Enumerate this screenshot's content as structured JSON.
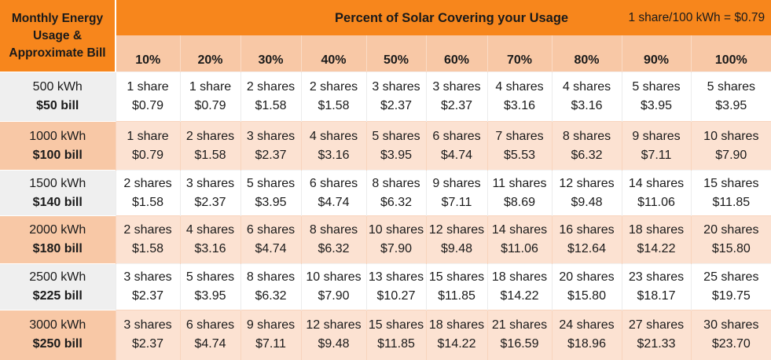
{
  "header": {
    "corner_lines": [
      "Monthly Energy",
      "Usage &",
      "Approximate Bill"
    ],
    "banner_title": "Percent of Solar Covering your Usage",
    "rate_note": "1 share/100 kWh = $0.79",
    "percents": [
      "10%",
      "20%",
      "30%",
      "40%",
      "50%",
      "60%",
      "70%",
      "80%",
      "90%",
      "100%"
    ]
  },
  "rows": [
    {
      "usage": "500 kWh",
      "bill": "$50 bill",
      "cells": [
        {
          "shares": "1 share",
          "cost": "$0.79"
        },
        {
          "shares": "1 share",
          "cost": "$0.79"
        },
        {
          "shares": "2 shares",
          "cost": "$1.58"
        },
        {
          "shares": "2 shares",
          "cost": "$1.58"
        },
        {
          "shares": "3 shares",
          "cost": "$2.37"
        },
        {
          "shares": "3 shares",
          "cost": "$2.37"
        },
        {
          "shares": "4 shares",
          "cost": "$3.16"
        },
        {
          "shares": "4 shares",
          "cost": "$3.16"
        },
        {
          "shares": "5 shares",
          "cost": "$3.95"
        },
        {
          "shares": "5 shares",
          "cost": "$3.95"
        }
      ]
    },
    {
      "usage": "1000 kWh",
      "bill": "$100 bill",
      "cells": [
        {
          "shares": "1 share",
          "cost": "$0.79"
        },
        {
          "shares": "2 shares",
          "cost": "$1.58"
        },
        {
          "shares": "3 shares",
          "cost": "$2.37"
        },
        {
          "shares": "4 shares",
          "cost": "$3.16"
        },
        {
          "shares": "5 shares",
          "cost": "$3.95"
        },
        {
          "shares": "6 shares",
          "cost": "$4.74"
        },
        {
          "shares": "7 shares",
          "cost": "$5.53"
        },
        {
          "shares": "8 shares",
          "cost": "$6.32"
        },
        {
          "shares": "9 shares",
          "cost": "$7.11"
        },
        {
          "shares": "10 shares",
          "cost": "$7.90"
        }
      ]
    },
    {
      "usage": "1500 kWh",
      "bill": "$140 bill",
      "cells": [
        {
          "shares": "2 shares",
          "cost": "$1.58"
        },
        {
          "shares": "3 shares",
          "cost": "$2.37"
        },
        {
          "shares": "5 shares",
          "cost": "$3.95"
        },
        {
          "shares": "6 shares",
          "cost": "$4.74"
        },
        {
          "shares": "8 shares",
          "cost": "$6.32"
        },
        {
          "shares": "9 shares",
          "cost": "$7.11"
        },
        {
          "shares": "11 shares",
          "cost": "$8.69"
        },
        {
          "shares": "12 shares",
          "cost": "$9.48"
        },
        {
          "shares": "14 shares",
          "cost": "$11.06"
        },
        {
          "shares": "15 shares",
          "cost": "$11.85"
        }
      ]
    },
    {
      "usage": "2000 kWh",
      "bill": "$180 bill",
      "cells": [
        {
          "shares": "2 shares",
          "cost": "$1.58"
        },
        {
          "shares": "4 shares",
          "cost": "$3.16"
        },
        {
          "shares": "6 shares",
          "cost": "$4.74"
        },
        {
          "shares": "8 shares",
          "cost": "$6.32"
        },
        {
          "shares": "10 shares",
          "cost": "$7.90"
        },
        {
          "shares": "12 shares",
          "cost": "$9.48"
        },
        {
          "shares": "14 shares",
          "cost": "$11.06"
        },
        {
          "shares": "16 shares",
          "cost": "$12.64"
        },
        {
          "shares": "18 shares",
          "cost": "$14.22"
        },
        {
          "shares": "20 shares",
          "cost": "$15.80"
        }
      ]
    },
    {
      "usage": "2500 kWh",
      "bill": "$225 bill",
      "cells": [
        {
          "shares": "3 shares",
          "cost": "$2.37"
        },
        {
          "shares": "5 shares",
          "cost": "$3.95"
        },
        {
          "shares": "8 shares",
          "cost": "$6.32"
        },
        {
          "shares": "10 shares",
          "cost": "$7.90"
        },
        {
          "shares": "13 shares",
          "cost": "$10.27"
        },
        {
          "shares": "15 shares",
          "cost": "$11.85"
        },
        {
          "shares": "18 shares",
          "cost": "$14.22"
        },
        {
          "shares": "20 shares",
          "cost": "$15.80"
        },
        {
          "shares": "23 shares",
          "cost": "$18.17"
        },
        {
          "shares": "25 shares",
          "cost": "$19.75"
        }
      ]
    },
    {
      "usage": "3000 kWh",
      "bill": "$250 bill",
      "cells": [
        {
          "shares": "3 shares",
          "cost": "$2.37"
        },
        {
          "shares": "6 shares",
          "cost": "$4.74"
        },
        {
          "shares": "9 shares",
          "cost": "$7.11"
        },
        {
          "shares": "12 shares",
          "cost": "$9.48"
        },
        {
          "shares": "15 shares",
          "cost": "$11.85"
        },
        {
          "shares": "18 shares",
          "cost": "$14.22"
        },
        {
          "shares": "21 shares",
          "cost": "$16.59"
        },
        {
          "shares": "24 shares",
          "cost": "$18.96"
        },
        {
          "shares": "27 shares",
          "cost": "$21.33"
        },
        {
          "shares": "30 shares",
          "cost": "$23.70"
        }
      ]
    }
  ]
}
